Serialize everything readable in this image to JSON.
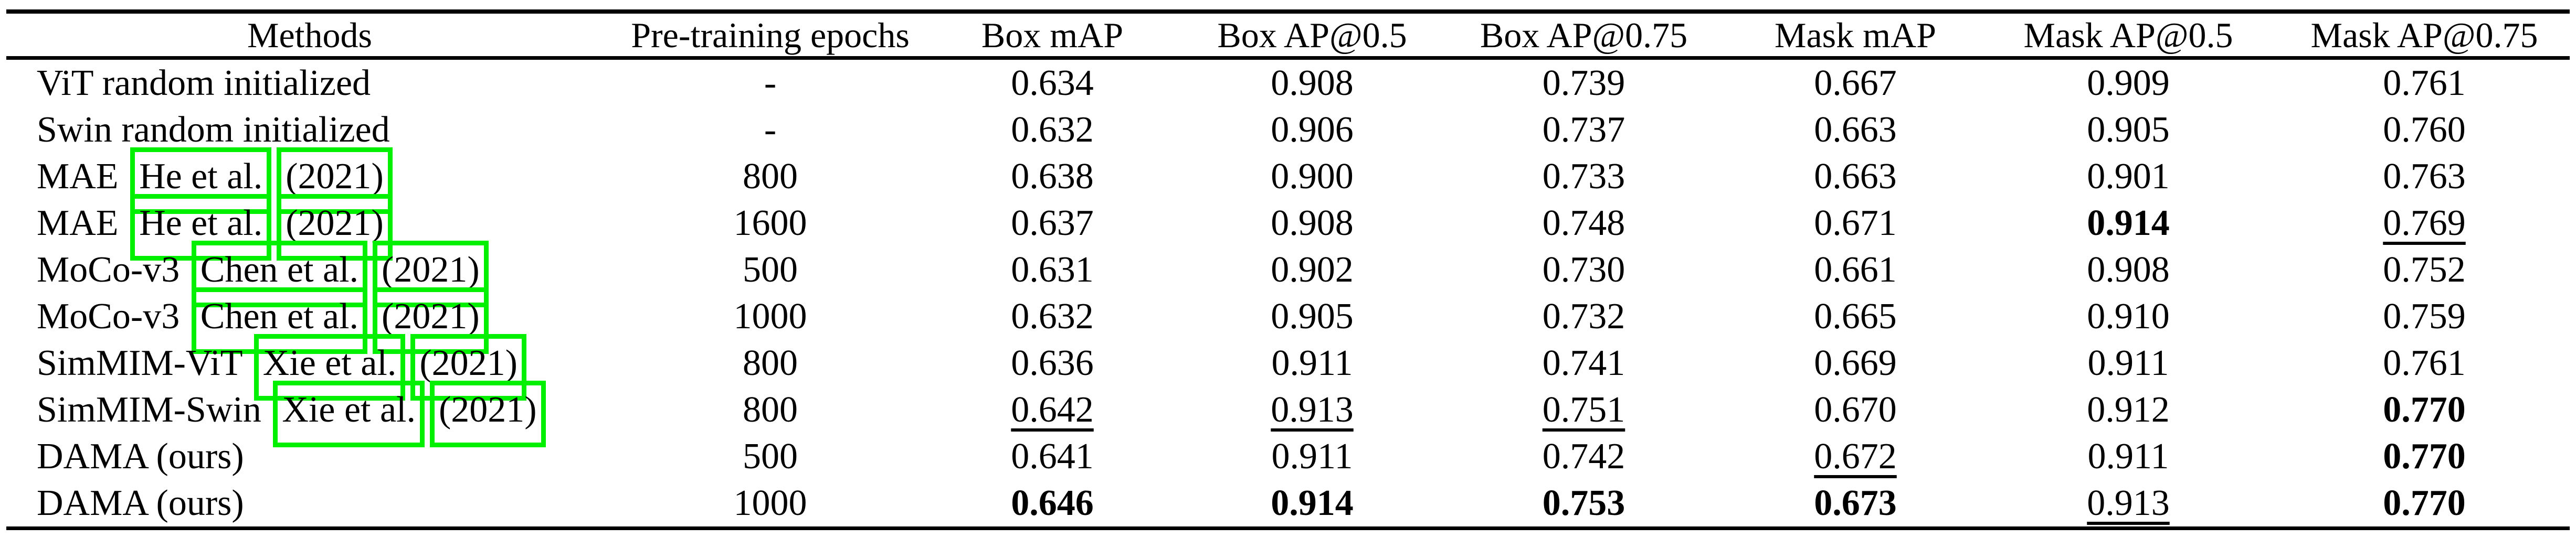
{
  "page": {
    "background": "#ffffff",
    "annotation_color": "#00f000"
  },
  "table": {
    "columns": [
      "Methods",
      "Pre-training epochs",
      "Box mAP",
      "Box AP@0.5",
      "Box AP@0.75",
      "Mask mAP",
      "Mask AP@0.5",
      "Mask AP@0.75"
    ],
    "rows": [
      {
        "method": "ViT random initialized",
        "citation": null,
        "cells": [
          {
            "t": "-",
            "s": ""
          },
          {
            "t": "0.634",
            "s": ""
          },
          {
            "t": "0.908",
            "s": ""
          },
          {
            "t": "0.739",
            "s": ""
          },
          {
            "t": "0.667",
            "s": ""
          },
          {
            "t": "0.909",
            "s": ""
          },
          {
            "t": "0.761",
            "s": ""
          }
        ]
      },
      {
        "method": "Swin random initialized",
        "citation": null,
        "cells": [
          {
            "t": "-",
            "s": ""
          },
          {
            "t": "0.632",
            "s": ""
          },
          {
            "t": "0.906",
            "s": ""
          },
          {
            "t": "0.737",
            "s": ""
          },
          {
            "t": "0.663",
            "s": ""
          },
          {
            "t": "0.905",
            "s": ""
          },
          {
            "t": "0.760",
            "s": ""
          }
        ]
      },
      {
        "method": "MAE",
        "citation": {
          "authors": "He et al.",
          "year": "(2021)"
        },
        "cells": [
          {
            "t": "800",
            "s": ""
          },
          {
            "t": "0.638",
            "s": ""
          },
          {
            "t": "0.900",
            "s": ""
          },
          {
            "t": "0.733",
            "s": ""
          },
          {
            "t": "0.663",
            "s": ""
          },
          {
            "t": "0.901",
            "s": ""
          },
          {
            "t": "0.763",
            "s": ""
          }
        ]
      },
      {
        "method": "MAE",
        "citation": {
          "authors": "He et al.",
          "year": "(2021)"
        },
        "cells": [
          {
            "t": "1600",
            "s": ""
          },
          {
            "t": "0.637",
            "s": ""
          },
          {
            "t": "0.908",
            "s": ""
          },
          {
            "t": "0.748",
            "s": ""
          },
          {
            "t": "0.671",
            "s": ""
          },
          {
            "t": "0.914",
            "s": "b"
          },
          {
            "t": "0.769",
            "s": "u"
          }
        ]
      },
      {
        "method": "MoCo-v3",
        "citation": {
          "authors": "Chen et al.",
          "year": "(2021)"
        },
        "cells": [
          {
            "t": "500",
            "s": ""
          },
          {
            "t": "0.631",
            "s": ""
          },
          {
            "t": "0.902",
            "s": ""
          },
          {
            "t": "0.730",
            "s": ""
          },
          {
            "t": "0.661",
            "s": ""
          },
          {
            "t": "0.908",
            "s": ""
          },
          {
            "t": "0.752",
            "s": ""
          }
        ]
      },
      {
        "method": "MoCo-v3",
        "citation": {
          "authors": "Chen et al.",
          "year": "(2021)"
        },
        "cells": [
          {
            "t": "1000",
            "s": ""
          },
          {
            "t": "0.632",
            "s": ""
          },
          {
            "t": "0.905",
            "s": ""
          },
          {
            "t": "0.732",
            "s": ""
          },
          {
            "t": "0.665",
            "s": ""
          },
          {
            "t": "0.910",
            "s": ""
          },
          {
            "t": "0.759",
            "s": ""
          }
        ]
      },
      {
        "method": "SimMIM-ViT",
        "citation": {
          "authors": "Xie et al.",
          "year": "(2021)"
        },
        "cells": [
          {
            "t": "800",
            "s": ""
          },
          {
            "t": "0.636",
            "s": ""
          },
          {
            "t": "0.911",
            "s": ""
          },
          {
            "t": "0.741",
            "s": ""
          },
          {
            "t": "0.669",
            "s": ""
          },
          {
            "t": "0.911",
            "s": ""
          },
          {
            "t": "0.761",
            "s": ""
          }
        ]
      },
      {
        "method": "SimMIM-Swin",
        "citation": {
          "authors": "Xie et al.",
          "year": "(2021)"
        },
        "cells": [
          {
            "t": "800",
            "s": ""
          },
          {
            "t": "0.642",
            "s": "u"
          },
          {
            "t": "0.913",
            "s": "u"
          },
          {
            "t": "0.751",
            "s": "u"
          },
          {
            "t": "0.670",
            "s": ""
          },
          {
            "t": "0.912",
            "s": ""
          },
          {
            "t": "0.770",
            "s": "b"
          }
        ]
      },
      {
        "method": "DAMA (ours)",
        "citation": null,
        "cells": [
          {
            "t": "500",
            "s": ""
          },
          {
            "t": "0.641",
            "s": ""
          },
          {
            "t": "0.911",
            "s": ""
          },
          {
            "t": "0.742",
            "s": ""
          },
          {
            "t": "0.672",
            "s": "u"
          },
          {
            "t": "0.911",
            "s": ""
          },
          {
            "t": "0.770",
            "s": "b"
          }
        ]
      },
      {
        "method": "DAMA (ours)",
        "citation": null,
        "cells": [
          {
            "t": "1000",
            "s": ""
          },
          {
            "t": "0.646",
            "s": "b"
          },
          {
            "t": "0.914",
            "s": "b"
          },
          {
            "t": "0.753",
            "s": "b"
          },
          {
            "t": "0.673",
            "s": "b"
          },
          {
            "t": "0.913",
            "s": "u"
          },
          {
            "t": "0.770",
            "s": "b"
          }
        ]
      }
    ]
  }
}
